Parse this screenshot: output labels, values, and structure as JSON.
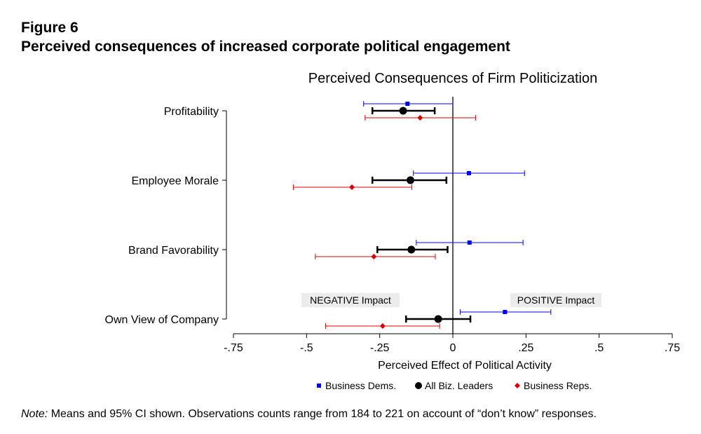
{
  "figure": {
    "label": "Figure 6",
    "title": "Perceived consequences of increased corporate political engagement"
  },
  "note": {
    "prefix": "Note:",
    "text": " Means and 95% CI shown. Observations counts range from 184 to 221 on account of “don’t know” responses."
  },
  "chart_data": {
    "type": "dot-and-whisker",
    "title": "Perceived Consequences of Firm Politicization",
    "xlabel": "Perceived Effect of Political Activity",
    "xlim": [
      -0.75,
      0.75
    ],
    "xticks": [
      -0.75,
      -0.5,
      -0.25,
      0,
      0.25,
      0.5,
      0.75
    ],
    "xtick_labels": [
      "-.75",
      "-.5",
      "-.25",
      "0",
      ".25",
      ".5",
      ".75"
    ],
    "categories": [
      "Profitability",
      "Employee Morale",
      "Brand Favorability",
      "Own View of Company"
    ],
    "annotations": [
      "NEGATIVE Impact",
      "POSITIVE Impact"
    ],
    "legend_position": "bottom",
    "series": [
      {
        "name": "Business Dems.",
        "color": "#0000ff",
        "marker": "square",
        "points": [
          {
            "category": "Profitability",
            "mean": -0.155,
            "ci": [
              -0.305,
              0.0
            ]
          },
          {
            "category": "Employee Morale",
            "mean": 0.055,
            "ci": [
              -0.135,
              0.245
            ]
          },
          {
            "category": "Brand Favorability",
            "mean": 0.057,
            "ci": [
              -0.125,
              0.24
            ]
          },
          {
            "category": "Own View of Company",
            "mean": 0.178,
            "ci": [
              0.025,
              0.335
            ]
          }
        ]
      },
      {
        "name": "All Biz. Leaders",
        "color": "#000000",
        "marker": "circle",
        "points": [
          {
            "category": "Profitability",
            "mean": -0.17,
            "ci": [
              -0.275,
              -0.062
            ]
          },
          {
            "category": "Employee Morale",
            "mean": -0.145,
            "ci": [
              -0.275,
              -0.022
            ]
          },
          {
            "category": "Brand Favorability",
            "mean": -0.142,
            "ci": [
              -0.258,
              -0.018
            ]
          },
          {
            "category": "Own View of Company",
            "mean": -0.05,
            "ci": [
              -0.16,
              0.06
            ]
          }
        ]
      },
      {
        "name": "Business Reps.",
        "color": "#dd0000",
        "marker": "diamond",
        "points": [
          {
            "category": "Profitability",
            "mean": -0.112,
            "ci": [
              -0.3,
              0.078
            ]
          },
          {
            "category": "Employee Morale",
            "mean": -0.345,
            "ci": [
              -0.545,
              -0.14
            ]
          },
          {
            "category": "Brand Favorability",
            "mean": -0.27,
            "ci": [
              -0.47,
              -0.06
            ]
          },
          {
            "category": "Own View of Company",
            "mean": -0.24,
            "ci": [
              -0.435,
              -0.045
            ]
          }
        ]
      }
    ]
  }
}
